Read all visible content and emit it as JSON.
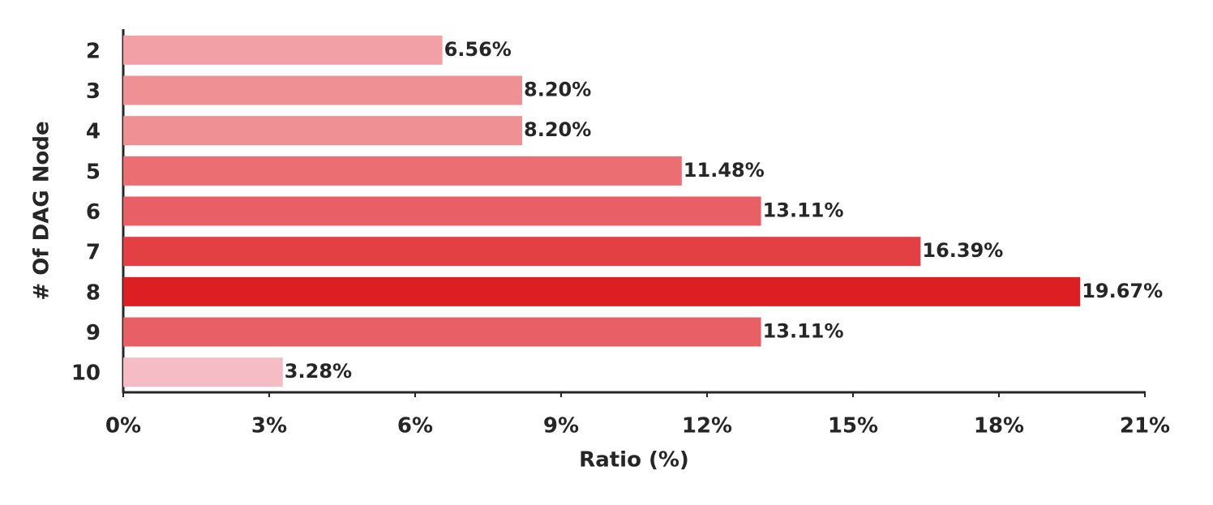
{
  "chart_data": {
    "type": "barh",
    "categories": [
      "2",
      "3",
      "4",
      "5",
      "6",
      "7",
      "8",
      "9",
      "10"
    ],
    "values": [
      6.56,
      8.2,
      8.2,
      11.48,
      13.11,
      16.39,
      19.67,
      13.11,
      3.28
    ],
    "value_labels": [
      "6.56%",
      "8.20%",
      "8.20%",
      "11.48%",
      "13.11%",
      "16.39%",
      "19.67%",
      "13.11%",
      "3.28%"
    ],
    "colors": [
      "#f2a0a6",
      "#ef9095",
      "#ef9095",
      "#ea6e72",
      "#e86065",
      "#e34044",
      "#db1f22",
      "#e86065",
      "#f5bcc5"
    ],
    "xlabel": "Ratio (%)",
    "ylabel": "# Of DAG Node",
    "xlim": [
      0,
      21
    ],
    "xticks": [
      {
        "value": 0,
        "label": "0%"
      },
      {
        "value": 3,
        "label": "3%"
      },
      {
        "value": 6,
        "label": "6%"
      },
      {
        "value": 9,
        "label": "9%"
      },
      {
        "value": 12,
        "label": "12%"
      },
      {
        "value": 15,
        "label": "15%"
      },
      {
        "value": 18,
        "label": "18%"
      },
      {
        "value": 21,
        "label": "21%"
      }
    ],
    "grid": false
  }
}
